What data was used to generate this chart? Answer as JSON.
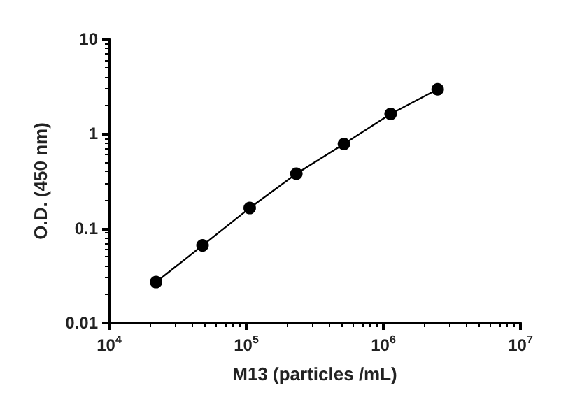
{
  "chart_data": {
    "type": "line",
    "xlabel": "M13 (particles /mL)",
    "ylabel": "O.D. (450 nm)",
    "x": [
      22000,
      48000,
      106000,
      232000,
      516000,
      1130000,
      2490000
    ],
    "series": [
      {
        "color": "#000000",
        "values": [
          0.027,
          0.066,
          0.164,
          0.378,
          0.78,
          1.62,
          2.95
        ]
      }
    ],
    "log": "xy",
    "xlim": [
      10000,
      10000000
    ],
    "ylim": [
      0.01,
      10
    ],
    "xticks": [
      {
        "value": 10000,
        "label": "10$^{4}$"
      },
      {
        "value": 100000,
        "label": "10$^{5}$"
      },
      {
        "value": 1000000,
        "label": "10$^{6}$"
      },
      {
        "value": 10000000,
        "label": "10$^{7}$"
      }
    ],
    "yticks": [
      0.01,
      0.1,
      1,
      10
    ],
    "marker": "circle",
    "line_style": "solid"
  }
}
